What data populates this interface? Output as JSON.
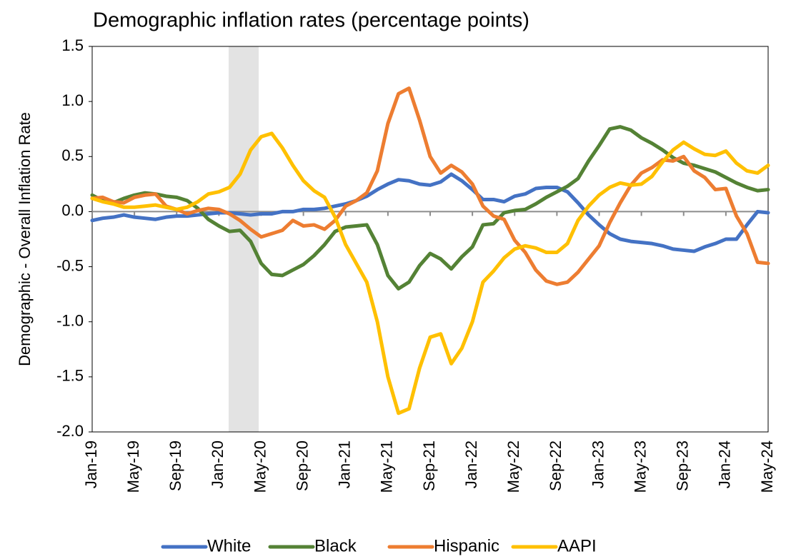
{
  "chart_data": {
    "type": "line",
    "title": "Demographic inflation rates (percentage points)",
    "y_label": "Demographic - Overall Inflation Rate",
    "categories": [
      "Jan-19",
      null,
      null,
      null,
      "May-19",
      null,
      null,
      null,
      "Sep-19",
      null,
      null,
      null,
      "Jan-20",
      null,
      null,
      null,
      "May-20",
      null,
      null,
      null,
      "Sep-20",
      null,
      null,
      null,
      "Jan-21",
      null,
      null,
      null,
      "May-21",
      null,
      null,
      null,
      "Sep-21",
      null,
      null,
      null,
      "Jan-22",
      null,
      null,
      null,
      "May-22",
      null,
      null,
      null,
      "Sep-22",
      null,
      null,
      null,
      "Jan-23",
      null,
      null,
      null,
      "May-23",
      null,
      null,
      null,
      "Sep-23",
      null,
      null,
      null,
      "Jan-24",
      null,
      null,
      null,
      "May-24"
    ],
    "ylim": [
      -2.0,
      1.5
    ],
    "yticks": [
      1.5,
      {
        "value": 1.0,
        "label": "1.0"
      },
      0.5,
      {
        "value": 0.0,
        "label": "0.0"
      },
      -0.5,
      {
        "value": -1.0,
        "label": "-1.0"
      },
      -1.5,
      {
        "value": -2.0,
        "label": "-2.0"
      }
    ],
    "grid": false,
    "legend": "bottom",
    "series": [
      {
        "name": "White",
        "color": "#4472c4",
        "values": [
          -0.08,
          -0.06,
          -0.05,
          -0.03,
          -0.05,
          -0.06,
          -0.07,
          -0.05,
          -0.04,
          -0.04,
          -0.03,
          -0.02,
          -0.01,
          -0.01,
          -0.02,
          -0.03,
          -0.02,
          -0.02,
          0.0,
          0.0,
          0.02,
          0.02,
          0.03,
          0.05,
          0.07,
          0.1,
          0.14,
          0.2,
          0.25,
          0.29,
          0.28,
          0.25,
          0.24,
          0.27,
          0.34,
          0.28,
          0.2,
          0.11,
          0.11,
          0.09,
          0.14,
          0.16,
          0.21,
          0.22,
          0.22,
          0.18,
          0.08,
          -0.03,
          -0.12,
          -0.2,
          -0.25,
          -0.27,
          -0.28,
          -0.29,
          -0.31,
          -0.34,
          -0.35,
          -0.36,
          -0.32,
          -0.29,
          -0.25,
          -0.25,
          -0.12,
          0.0,
          -0.01
        ]
      },
      {
        "name": "Black",
        "color": "#548235",
        "values": [
          0.15,
          0.1,
          0.08,
          0.12,
          0.15,
          0.17,
          0.16,
          0.14,
          0.13,
          0.1,
          0.03,
          -0.07,
          -0.13,
          -0.18,
          -0.17,
          -0.27,
          -0.47,
          -0.57,
          -0.58,
          -0.53,
          -0.48,
          -0.4,
          -0.3,
          -0.18,
          -0.14,
          -0.13,
          -0.12,
          -0.3,
          -0.58,
          -0.7,
          -0.64,
          -0.49,
          -0.38,
          -0.43,
          -0.52,
          -0.41,
          -0.32,
          -0.12,
          -0.11,
          -0.01,
          0.01,
          0.02,
          0.07,
          0.13,
          0.18,
          0.23,
          0.3,
          0.46,
          0.6,
          0.75,
          0.77,
          0.74,
          0.67,
          0.62,
          0.56,
          0.49,
          0.44,
          0.42,
          0.39,
          0.36,
          0.31,
          0.26,
          0.22,
          0.19,
          0.2
        ]
      },
      {
        "name": "Hispanic",
        "color": "#ed7d31",
        "values": [
          0.12,
          0.13,
          0.09,
          0.08,
          0.13,
          0.15,
          0.16,
          0.05,
          0.02,
          -0.02,
          0.01,
          0.03,
          0.02,
          -0.02,
          -0.08,
          -0.16,
          -0.23,
          -0.2,
          -0.17,
          -0.08,
          -0.13,
          -0.12,
          -0.16,
          -0.08,
          0.05,
          0.1,
          0.17,
          0.37,
          0.8,
          1.07,
          1.12,
          0.83,
          0.5,
          0.35,
          0.42,
          0.36,
          0.25,
          0.05,
          -0.04,
          -0.07,
          -0.26,
          -0.37,
          -0.53,
          -0.63,
          -0.66,
          -0.64,
          -0.55,
          -0.43,
          -0.31,
          -0.1,
          0.08,
          0.24,
          0.35,
          0.4,
          0.47,
          0.46,
          0.5,
          0.37,
          0.31,
          0.2,
          0.21,
          -0.04,
          -0.2,
          -0.46,
          -0.47
        ]
      },
      {
        "name": "AAPI",
        "color": "#ffc000",
        "values": [
          0.12,
          0.09,
          0.07,
          0.04,
          0.04,
          0.05,
          0.06,
          0.04,
          0.02,
          0.04,
          0.09,
          0.16,
          0.18,
          0.22,
          0.34,
          0.56,
          0.68,
          0.71,
          0.58,
          0.42,
          0.28,
          0.19,
          0.13,
          -0.05,
          -0.3,
          -0.47,
          -0.64,
          -1.0,
          -1.5,
          -1.83,
          -1.79,
          -1.42,
          -1.14,
          -1.11,
          -1.38,
          -1.24,
          -1.0,
          -0.64,
          -0.54,
          -0.42,
          -0.34,
          -0.31,
          -0.33,
          -0.37,
          -0.37,
          -0.29,
          -0.08,
          0.05,
          0.15,
          0.22,
          0.26,
          0.24,
          0.25,
          0.32,
          0.45,
          0.56,
          0.63,
          0.57,
          0.52,
          0.51,
          0.55,
          0.44,
          0.37,
          0.35,
          0.42
        ]
      }
    ]
  }
}
